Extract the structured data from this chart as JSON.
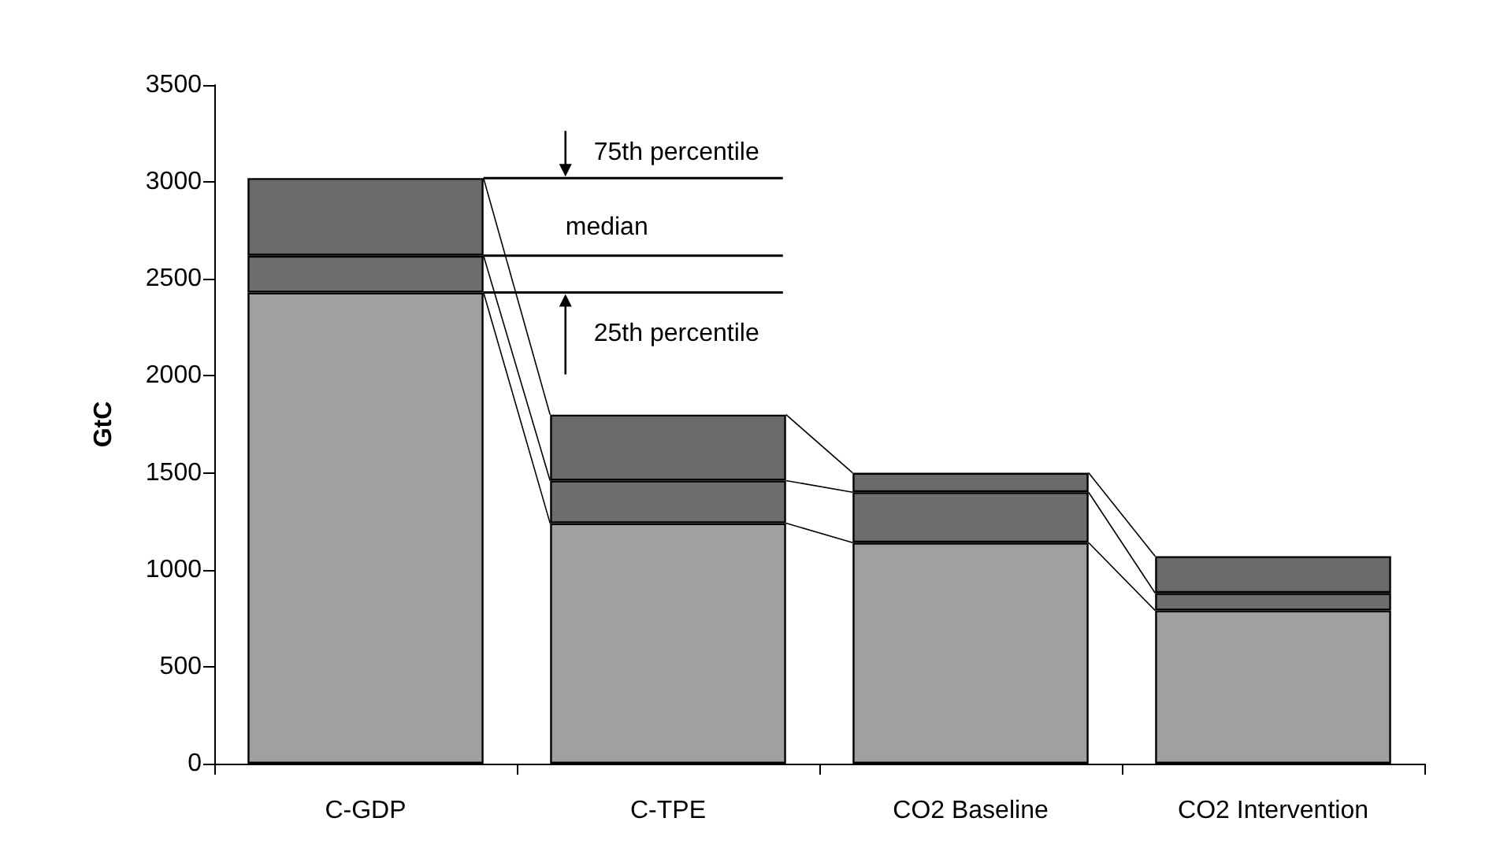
{
  "chart_data": {
    "type": "bar",
    "ylabel": "GtC",
    "categories": [
      "C-GDP",
      "C-TPE",
      "CO2 Baseline",
      "CO2 Intervention"
    ],
    "stacked": true,
    "series": [
      {
        "color": "#a0a0a0",
        "values": [
          2430,
          1240,
          1140,
          790
        ]
      },
      {
        "color": "#6e6e6e",
        "values": [
          190,
          220,
          260,
          90
        ]
      },
      {
        "color": "#6a6a6a",
        "values": [
          400,
          340,
          100,
          190
        ]
      }
    ],
    "ylim": [
      0,
      3500
    ],
    "yticks": [
      0,
      500,
      1000,
      1500,
      2000,
      2500,
      3000,
      3500
    ],
    "grid": false,
    "ref_lines": [
      {
        "axis": "y",
        "value": 3020,
        "label": "75th percentile"
      },
      {
        "axis": "y",
        "value": 2620,
        "label": "median"
      },
      {
        "axis": "y",
        "value": 2430,
        "label": "25th percentile"
      }
    ]
  }
}
